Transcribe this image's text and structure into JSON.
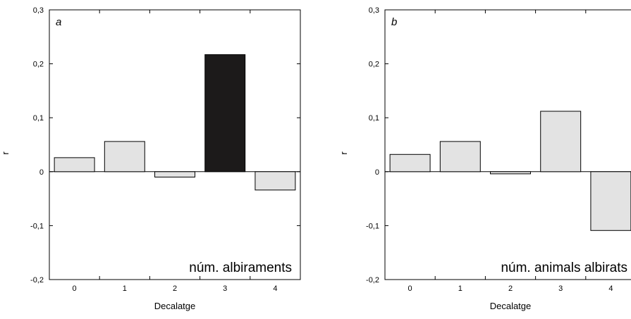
{
  "chart_data": [
    {
      "type": "bar",
      "panel_label": "a",
      "title": "núm. albiraments",
      "xlabel": "Decalatge",
      "ylabel": "r",
      "categories": [
        "0",
        "1",
        "2",
        "3",
        "4"
      ],
      "values": [
        0.026,
        0.056,
        -0.01,
        0.217,
        -0.034
      ],
      "highlight_index": 3,
      "ylim": [
        -0.2,
        0.3
      ],
      "yticks": [
        -0.2,
        -0.1,
        0,
        0.1,
        0.2,
        0.3
      ],
      "ytick_labels": [
        "-0,2",
        "-0,1",
        "0",
        "0,1",
        "0,2",
        "0,3"
      ],
      "grid": false
    },
    {
      "type": "bar",
      "panel_label": "b",
      "title": "núm. animals albirats",
      "xlabel": "Decalatge",
      "ylabel": "r",
      "categories": [
        "0",
        "1",
        "2",
        "3",
        "4"
      ],
      "values": [
        0.032,
        0.056,
        -0.004,
        0.112,
        -0.109
      ],
      "highlight_index": -1,
      "ylim": [
        -0.2,
        0.3
      ],
      "yticks": [
        -0.2,
        -0.1,
        0,
        0.1,
        0.2,
        0.3
      ],
      "ytick_labels": [
        "-0,2",
        "-0,1",
        "0",
        "0,1",
        "0,2",
        "0,3"
      ],
      "grid": false
    }
  ],
  "colors": {
    "bar_fill": "#e3e3e3",
    "bar_highlight": "#1c1a1a",
    "stroke": "#000000"
  }
}
